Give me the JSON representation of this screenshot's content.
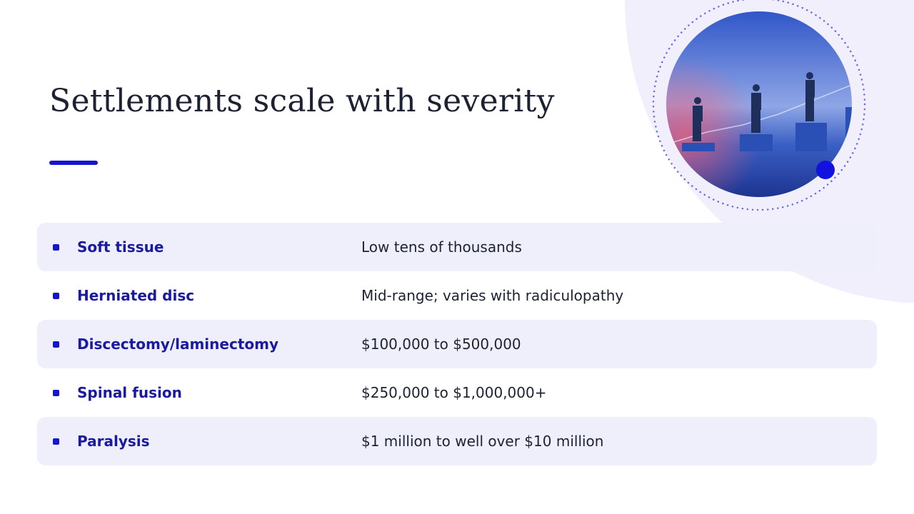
{
  "title": "Settlements scale with severity",
  "rows": [
    {
      "label": "Soft tissue",
      "value": "Low tens of thousands"
    },
    {
      "label": "Herniated disc",
      "value": "Mid-range; varies with radiculopathy"
    },
    {
      "label": "Discectomy/laminectomy",
      "value": "$100,000 to $500,000"
    },
    {
      "label": "Spinal fusion",
      "value": "$250,000 to $1,000,000+"
    },
    {
      "label": "Paralysis",
      "value": "$1 million to well over $10 million"
    }
  ]
}
